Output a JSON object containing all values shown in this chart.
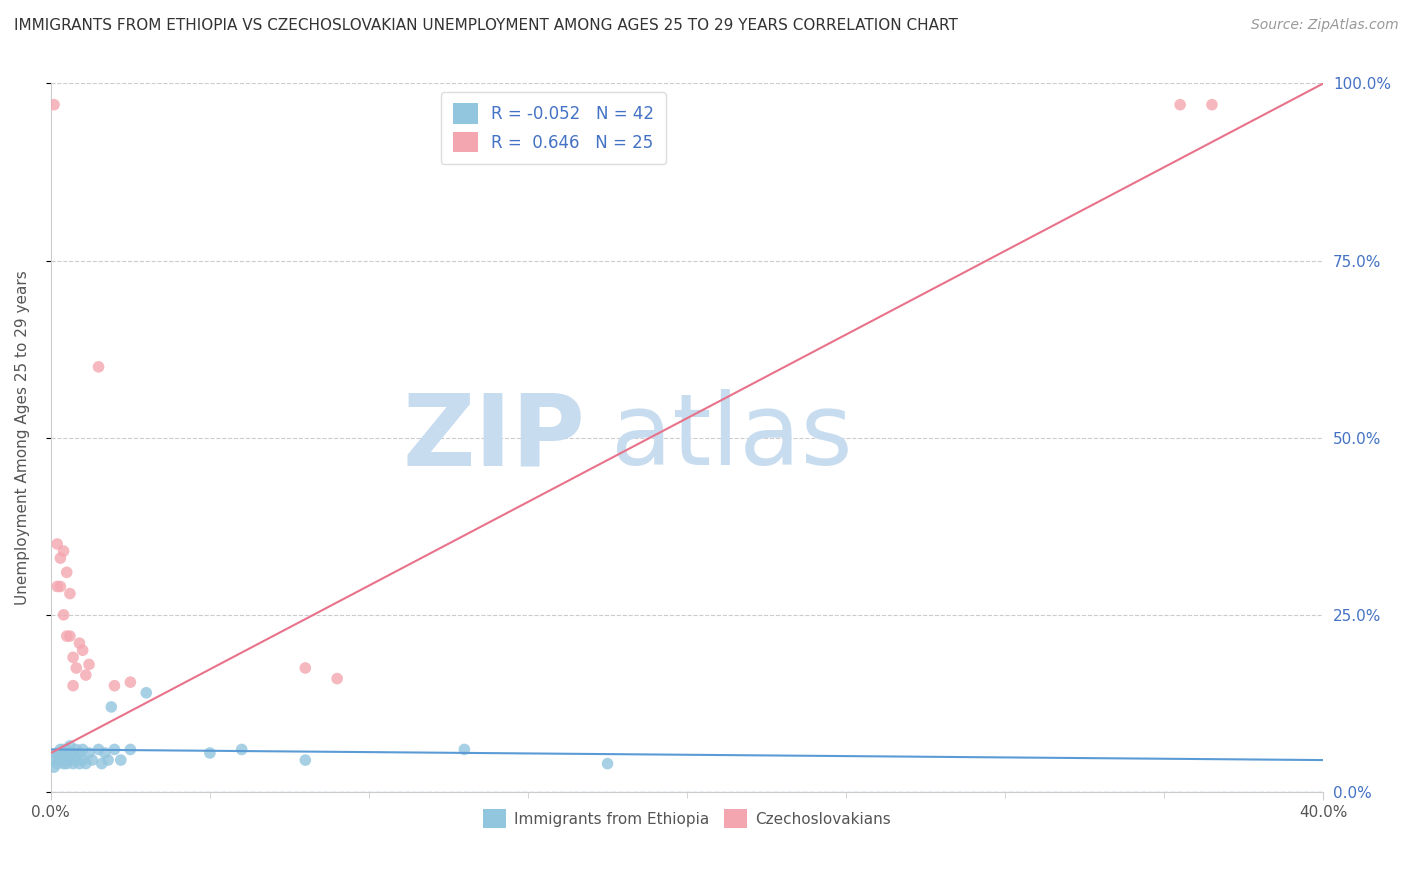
{
  "title": "IMMIGRANTS FROM ETHIOPIA VS CZECHOSLOVAKIAN UNEMPLOYMENT AMONG AGES 25 TO 29 YEARS CORRELATION CHART",
  "source": "Source: ZipAtlas.com",
  "ylabel": "Unemployment Among Ages 25 to 29 years",
  "xlim": [
    0.0,
    0.4
  ],
  "ylim": [
    0.0,
    1.0
  ],
  "xticks": [
    0.0,
    0.4
  ],
  "xtick_labels": [
    "0.0%",
    "40.0%"
  ],
  "yticks": [
    0.0,
    0.25,
    0.5,
    0.75,
    1.0
  ],
  "ytick_labels_right": [
    "0.0%",
    "25.0%",
    "50.0%",
    "75.0%",
    "100.0%"
  ],
  "legend_blue_R": "-0.052",
  "legend_blue_N": "42",
  "legend_pink_R": "0.646",
  "legend_pink_N": "25",
  "legend_blue_label": "Immigrants from Ethiopia",
  "legend_pink_label": "Czechoslovakians",
  "blue_color": "#92C5DE",
  "pink_color": "#F4A6B0",
  "blue_line_color": "#5B9BD5",
  "pink_line_color": "#E8728A",
  "dot_size": 70,
  "watermark_zip": "ZIP",
  "watermark_atlas": "atlas",
  "watermark_color": "#C8DCF0",
  "blue_scatter_x": [
    0.001,
    0.001,
    0.002,
    0.002,
    0.002,
    0.003,
    0.003,
    0.003,
    0.004,
    0.004,
    0.004,
    0.005,
    0.005,
    0.005,
    0.006,
    0.006,
    0.006,
    0.007,
    0.007,
    0.008,
    0.008,
    0.009,
    0.009,
    0.01,
    0.01,
    0.011,
    0.012,
    0.013,
    0.015,
    0.016,
    0.017,
    0.018,
    0.019,
    0.02,
    0.022,
    0.025,
    0.03,
    0.05,
    0.06,
    0.08,
    0.13,
    0.175
  ],
  "blue_scatter_y": [
    0.035,
    0.045,
    0.04,
    0.055,
    0.05,
    0.045,
    0.05,
    0.06,
    0.04,
    0.055,
    0.06,
    0.04,
    0.05,
    0.06,
    0.045,
    0.055,
    0.065,
    0.04,
    0.055,
    0.045,
    0.06,
    0.04,
    0.055,
    0.045,
    0.06,
    0.04,
    0.055,
    0.045,
    0.06,
    0.04,
    0.055,
    0.045,
    0.12,
    0.06,
    0.045,
    0.06,
    0.14,
    0.055,
    0.06,
    0.045,
    0.06,
    0.04
  ],
  "pink_scatter_x": [
    0.001,
    0.002,
    0.002,
    0.003,
    0.003,
    0.004,
    0.004,
    0.005,
    0.005,
    0.006,
    0.006,
    0.007,
    0.007,
    0.008,
    0.009,
    0.01,
    0.011,
    0.012,
    0.015,
    0.02,
    0.025,
    0.08,
    0.09,
    0.355,
    0.365
  ],
  "pink_scatter_y": [
    0.97,
    0.35,
    0.29,
    0.33,
    0.29,
    0.34,
    0.25,
    0.31,
    0.22,
    0.28,
    0.22,
    0.19,
    0.15,
    0.175,
    0.21,
    0.2,
    0.165,
    0.18,
    0.6,
    0.15,
    0.155,
    0.175,
    0.16,
    0.97,
    0.97
  ],
  "blue_line_x": [
    0.0,
    0.4
  ],
  "blue_line_y": [
    0.06,
    0.045
  ],
  "pink_line_x": [
    0.0,
    0.4
  ],
  "pink_line_y": [
    0.055,
    1.0
  ],
  "title_fontsize": 11,
  "axis_label_fontsize": 11,
  "tick_fontsize": 11,
  "source_fontsize": 10
}
